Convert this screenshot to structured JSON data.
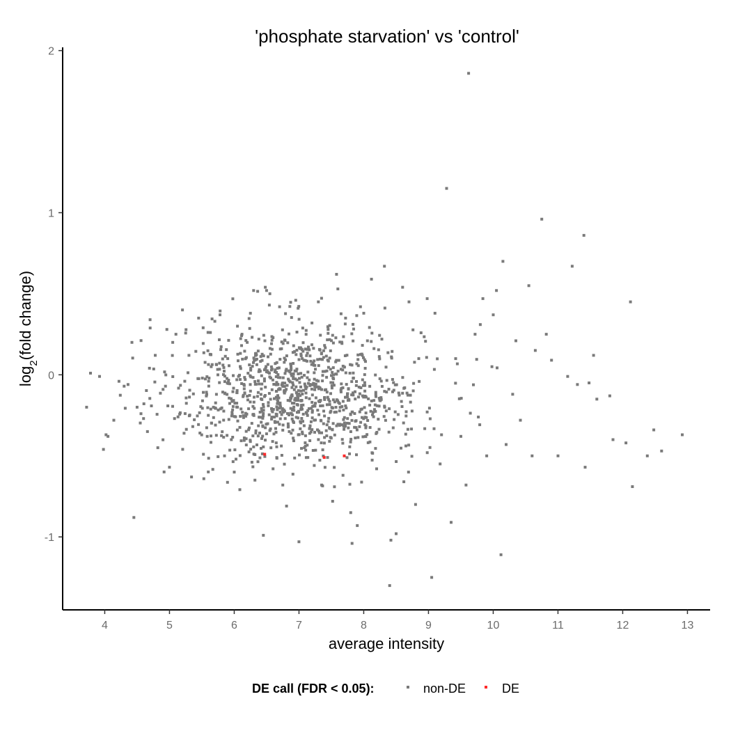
{
  "chart_data": {
    "type": "scatter",
    "title": "'phosphate starvation' vs 'control'",
    "xlabel": "average intensity",
    "ylabel_main": "log",
    "ylabel_sub": "2",
    "ylabel_rest": "(fold change)",
    "xlim": [
      3.35,
      13.35
    ],
    "ylim": [
      -1.45,
      2.02
    ],
    "xticks": [
      4,
      5,
      6,
      7,
      8,
      9,
      10,
      11,
      12,
      13
    ],
    "yticks": [
      -1,
      0,
      1,
      2
    ],
    "grid": false,
    "legend": {
      "title": "DE call (FDR < 0.05):",
      "position": "bottom",
      "entries": [
        {
          "label": "non-DE",
          "color": "#7a7a7a"
        },
        {
          "label": "DE",
          "color": "#ff2a2a"
        }
      ]
    },
    "series": [
      {
        "name": "non-DE",
        "color": "#7a7a7a",
        "points": [
          [
            3.72,
            -0.2
          ],
          [
            3.78,
            0.01
          ],
          [
            3.92,
            -0.01
          ],
          [
            3.98,
            -0.46
          ],
          [
            4.02,
            -0.37
          ],
          [
            4.05,
            -0.38
          ],
          [
            4.14,
            -0.28
          ],
          [
            4.22,
            -0.04
          ],
          [
            4.3,
            -0.07
          ],
          [
            4.36,
            -0.06
          ],
          [
            4.42,
            0.2
          ],
          [
            4.45,
            -0.88
          ],
          [
            4.5,
            -0.2
          ],
          [
            4.56,
            -0.24
          ],
          [
            4.6,
            -0.27
          ],
          [
            4.66,
            -0.35
          ],
          [
            4.7,
            0.34
          ],
          [
            4.78,
            0.12
          ],
          [
            4.82,
            -0.45
          ],
          [
            4.9,
            -0.09
          ],
          [
            4.96,
            0.28
          ],
          [
            5.0,
            -0.57
          ],
          [
            5.05,
            0.2
          ],
          [
            5.1,
            0.25
          ],
          [
            5.2,
            0.4
          ],
          [
            5.3,
            0.12
          ],
          [
            5.34,
            -0.63
          ],
          [
            5.45,
            0.35
          ],
          [
            5.52,
            0.29
          ],
          [
            5.6,
            -0.25
          ],
          [
            5.7,
            0.33
          ],
          [
            5.78,
            0.37
          ],
          [
            5.85,
            -0.5
          ],
          [
            5.9,
            0.1
          ],
          [
            6.0,
            -0.6
          ],
          [
            6.05,
            0.3
          ],
          [
            6.12,
            0.25
          ],
          [
            6.2,
            0.2
          ],
          [
            6.25,
            0.38
          ],
          [
            6.3,
            0.52
          ],
          [
            6.32,
            -0.65
          ],
          [
            6.38,
            0.22
          ],
          [
            6.45,
            -0.99
          ],
          [
            6.48,
            0.54
          ],
          [
            6.5,
            0.52
          ],
          [
            6.55,
            0.5
          ],
          [
            6.6,
            -0.58
          ],
          [
            6.7,
            0.42
          ],
          [
            6.75,
            -0.68
          ],
          [
            6.85,
            -0.35
          ],
          [
            6.95,
            0.46
          ],
          [
            7.0,
            -1.03
          ],
          [
            7.05,
            0.1
          ],
          [
            7.1,
            -0.44
          ],
          [
            7.2,
            0.32
          ],
          [
            7.3,
            0.45
          ],
          [
            7.35,
            -0.68
          ],
          [
            7.45,
            0.28
          ],
          [
            7.52,
            -0.78
          ],
          [
            7.58,
            0.62
          ],
          [
            7.6,
            0.53
          ],
          [
            7.68,
            -0.62
          ],
          [
            7.72,
            0.35
          ],
          [
            7.8,
            -0.85
          ],
          [
            7.82,
            -1.04
          ],
          [
            7.9,
            -0.93
          ],
          [
            7.95,
            0.42
          ],
          [
            8.0,
            0.38
          ],
          [
            8.12,
            0.59
          ],
          [
            8.2,
            -0.58
          ],
          [
            8.28,
            0.22
          ],
          [
            8.32,
            0.67
          ],
          [
            8.4,
            -1.3
          ],
          [
            8.42,
            -1.02
          ],
          [
            8.5,
            -0.98
          ],
          [
            8.6,
            0.54
          ],
          [
            8.62,
            -0.66
          ],
          [
            8.7,
            0.45
          ],
          [
            8.8,
            -0.8
          ],
          [
            8.85,
            0.1
          ],
          [
            8.98,
            0.47
          ],
          [
            9.05,
            -1.25
          ],
          [
            9.1,
            0.38
          ],
          [
            9.18,
            -0.55
          ],
          [
            9.28,
            1.15
          ],
          [
            9.35,
            -0.91
          ],
          [
            9.42,
            0.1
          ],
          [
            9.5,
            -0.38
          ],
          [
            9.58,
            -0.68
          ],
          [
            9.62,
            1.86
          ],
          [
            9.72,
            0.25
          ],
          [
            9.8,
            0.31
          ],
          [
            9.84,
            0.47
          ],
          [
            9.9,
            -0.5
          ],
          [
            9.98,
            0.05
          ],
          [
            10.0,
            0.37
          ],
          [
            10.05,
            0.52
          ],
          [
            10.12,
            -1.11
          ],
          [
            10.15,
            0.7
          ],
          [
            10.2,
            -0.43
          ],
          [
            10.3,
            -0.12
          ],
          [
            10.35,
            0.21
          ],
          [
            10.42,
            -0.28
          ],
          [
            10.55,
            0.55
          ],
          [
            10.6,
            -0.5
          ],
          [
            10.65,
            0.15
          ],
          [
            10.75,
            0.96
          ],
          [
            10.82,
            0.25
          ],
          [
            10.9,
            0.09
          ],
          [
            11.0,
            -0.5
          ],
          [
            11.15,
            -0.01
          ],
          [
            11.22,
            0.67
          ],
          [
            11.3,
            -0.06
          ],
          [
            11.4,
            0.86
          ],
          [
            11.42,
            -0.57
          ],
          [
            11.48,
            -0.05
          ],
          [
            11.55,
            0.12
          ],
          [
            11.6,
            -0.15
          ],
          [
            11.8,
            -0.13
          ],
          [
            11.85,
            -0.4
          ],
          [
            12.05,
            -0.42
          ],
          [
            12.12,
            0.45
          ],
          [
            12.15,
            -0.69
          ],
          [
            12.38,
            -0.5
          ],
          [
            12.48,
            -0.34
          ],
          [
            12.6,
            -0.47
          ],
          [
            12.92,
            -0.37
          ]
        ],
        "cloud": {
          "count": 1080,
          "x_mean": 7.0,
          "x_sd": 0.95,
          "y_mean": -0.12,
          "y_sd": 0.21,
          "seed": 20240611
        }
      },
      {
        "name": "DE",
        "color": "#ff2a2a",
        "points": [
          [
            6.47,
            -0.49
          ],
          [
            7.39,
            -0.51
          ],
          [
            7.7,
            -0.5
          ]
        ]
      }
    ]
  }
}
